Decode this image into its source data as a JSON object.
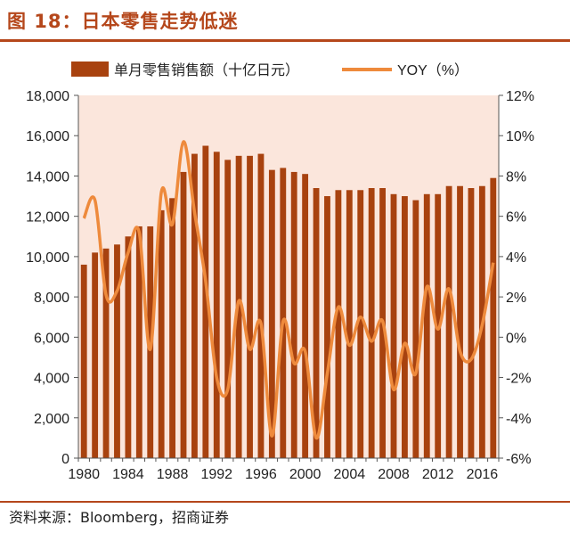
{
  "figure": {
    "title": "图 18：日本零售走势低迷",
    "source": "资料来源：Bloomberg，招商证券"
  },
  "colors": {
    "bar": "#a8420f",
    "line": "#ee8a3c",
    "title": "#b5471b",
    "plot_background": "#fbe6dc",
    "axis": "#555555"
  },
  "chart_data": {
    "type": "bar",
    "title": "",
    "xlabel": "",
    "ylabel": "",
    "y2label": "",
    "ylim": [
      0,
      18000
    ],
    "y2lim": [
      -6,
      12
    ],
    "yticks": [
      "0",
      "2,000",
      "4,000",
      "6,000",
      "8,000",
      "10,000",
      "12,000",
      "14,000",
      "16,000",
      "18,000"
    ],
    "y2ticks": [
      "-6%",
      "-4%",
      "-2%",
      "0%",
      "2%",
      "4%",
      "6%",
      "8%",
      "10%",
      "12%"
    ],
    "xticks": [
      "1980",
      "1984",
      "1988",
      "1992",
      "1996",
      "2000",
      "2004",
      "2008",
      "2012",
      "2016"
    ],
    "legend_position": "top",
    "grid": false,
    "categories": [
      1980,
      1981,
      1982,
      1983,
      1984,
      1985,
      1986,
      1987,
      1988,
      1989,
      1990,
      1991,
      1992,
      1993,
      1994,
      1995,
      1996,
      1997,
      1998,
      1999,
      2000,
      2001,
      2002,
      2003,
      2004,
      2005,
      2006,
      2007,
      2008,
      2009,
      2010,
      2011,
      2012,
      2013,
      2014,
      2015,
      2016,
      2017
    ],
    "series": [
      {
        "name": "单月零售销售额（十亿日元）",
        "type": "bar",
        "axis": "left",
        "values": [
          9600,
          10200,
          10400,
          10600,
          11000,
          11500,
          11500,
          12300,
          12900,
          14200,
          15100,
          15500,
          15200,
          14800,
          15000,
          15000,
          15100,
          14300,
          14400,
          14200,
          14100,
          13400,
          13000,
          13300,
          13300,
          13300,
          13400,
          13400,
          13100,
          13000,
          12800,
          13100,
          13100,
          13500,
          13500,
          13400,
          13500,
          13900
        ]
      },
      {
        "name": "YOY（%）",
        "type": "line",
        "axis": "right",
        "values": [
          5.9,
          6.8,
          2.1,
          2.3,
          4.2,
          5.2,
          -0.6,
          7.2,
          5.6,
          9.7,
          6.2,
          2.8,
          -2.0,
          -2.6,
          1.8,
          -0.6,
          0.7,
          -4.9,
          0.8,
          -1.3,
          -0.7,
          -5.0,
          -1.8,
          1.5,
          -0.4,
          1.0,
          -0.2,
          0.8,
          -2.6,
          -0.3,
          -1.8,
          2.5,
          0.4,
          2.4,
          -0.7,
          -1.1,
          0.6,
          3.7
        ]
      }
    ]
  }
}
